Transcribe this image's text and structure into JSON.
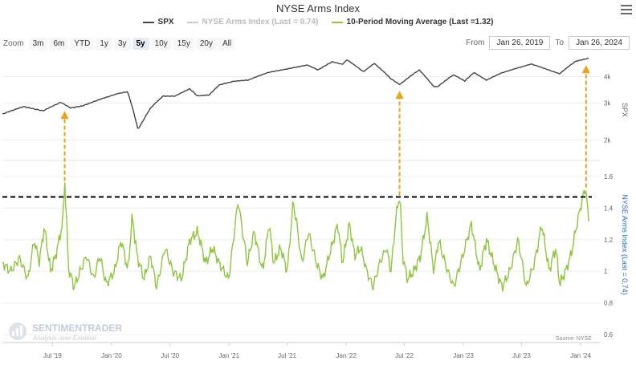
{
  "title": "NYSE Arms Index",
  "legend": [
    {
      "label": "SPX",
      "color": "#444444"
    },
    {
      "label": "NYSE Arms Index (Last = 0.74)",
      "color": "#cccccc"
    },
    {
      "label": "10-Period Moving Average (Last =1.32)",
      "color": "#8dc63f"
    }
  ],
  "zoom": {
    "label": "Zoom",
    "buttons": [
      "3m",
      "6m",
      "YTD",
      "1y",
      "3y",
      "5y",
      "10y",
      "15y",
      "20y",
      "All"
    ],
    "active": "5y"
  },
  "range": {
    "from_label": "From",
    "from": "Jan 26, 2019",
    "to_label": "To",
    "to": "Jan 26, 2024"
  },
  "watermark": {
    "brand": "SENTIMENTRADER",
    "tagline": "Analysis over Emotion"
  },
  "source": "Source: NYSE",
  "colors": {
    "spx": "#444444",
    "arms": "#8dc63f",
    "arrow": "#e8a317",
    "threshold": "#000000",
    "axis_right": "#2a6ebb"
  },
  "chart_data": {
    "type": "line",
    "title": "NYSE Arms Index",
    "x_range": [
      "2019-01-26",
      "2024-01-26"
    ],
    "x_ticks": [
      "Jul '19",
      "Jan '20",
      "Jul '20",
      "Jan '21",
      "Jul '21",
      "Jan '22",
      "Jul '22",
      "Jan '23",
      "Jul '23",
      "Jan '24"
    ],
    "x_tick_dates": [
      "2019-07-01",
      "2020-01-01",
      "2020-07-01",
      "2021-01-01",
      "2021-07-01",
      "2022-01-01",
      "2022-07-01",
      "2023-01-01",
      "2023-07-01",
      "2024-01-01"
    ],
    "grid": true,
    "legend_position": "top-center",
    "panels": [
      {
        "name": "SPX",
        "ylabel": "SPX",
        "scale": "log",
        "yticks": [
          "2k",
          "3k",
          "4k"
        ],
        "ytick_values": [
          2000,
          3000,
          4000
        ],
        "ylim": [
          1600,
          5000
        ],
        "series": [
          {
            "name": "SPX",
            "x": [
              "2019-01-26",
              "2019-04-01",
              "2019-06-01",
              "2019-07-26",
              "2019-08-26",
              "2019-10-01",
              "2019-12-01",
              "2020-01-20",
              "2020-02-19",
              "2020-03-23",
              "2020-05-01",
              "2020-06-08",
              "2020-07-15",
              "2020-08-31",
              "2020-09-23",
              "2020-10-30",
              "2020-12-01",
              "2021-01-15",
              "2021-03-01",
              "2021-05-01",
              "2021-07-01",
              "2021-09-02",
              "2021-10-04",
              "2021-11-18",
              "2021-12-20",
              "2022-01-03",
              "2022-02-23",
              "2022-03-29",
              "2022-05-20",
              "2022-06-16",
              "2022-08-16",
              "2022-09-30",
              "2022-10-12",
              "2022-12-01",
              "2023-01-05",
              "2023-02-02",
              "2023-03-13",
              "2023-05-01",
              "2023-07-31",
              "2023-10-27",
              "2023-12-15",
              "2024-01-26"
            ],
            "values": [
              2660,
              2880,
              2750,
              3020,
              2840,
              2900,
              3140,
              3320,
              3390,
              2240,
              2830,
              3230,
              3230,
              3500,
              3240,
              3270,
              3650,
              3800,
              3850,
              4180,
              4350,
              4540,
              4300,
              4700,
              4570,
              4800,
              4220,
              4620,
              3900,
              3670,
              4300,
              3590,
              3580,
              4080,
              3810,
              4180,
              3850,
              4170,
              4590,
              4120,
              4720,
              4890
            ]
          }
        ]
      },
      {
        "name": "NYSE Arms Index",
        "ylabel": "NYSE Arms Index (Last = 0.74)",
        "yticks": [
          "0.6",
          "0.8",
          "1",
          "1.2",
          "1.4",
          "1.6"
        ],
        "ytick_values": [
          0.6,
          0.8,
          1.0,
          1.2,
          1.4,
          1.6
        ],
        "ylim": [
          0.55,
          1.65
        ],
        "threshold": 1.47,
        "series": [
          {
            "name": "10-Period Moving Average (Last =1.32)",
            "x": [
              "2019-01-26",
              "2019-02-20",
              "2019-03-20",
              "2019-04-15",
              "2019-05-05",
              "2019-05-20",
              "2019-06-05",
              "2019-06-25",
              "2019-07-10",
              "2019-08-01",
              "2019-08-08",
              "2019-08-20",
              "2019-09-05",
              "2019-09-25",
              "2019-10-15",
              "2019-11-05",
              "2019-11-25",
              "2019-12-15",
              "2020-01-10",
              "2020-01-31",
              "2020-02-20",
              "2020-03-05",
              "2020-03-20",
              "2020-04-10",
              "2020-05-01",
              "2020-05-20",
              "2020-06-15",
              "2020-07-10",
              "2020-08-05",
              "2020-09-01",
              "2020-09-25",
              "2020-10-20",
              "2020-11-10",
              "2020-12-01",
              "2020-12-30",
              "2021-01-29",
              "2021-02-26",
              "2021-03-20",
              "2021-04-15",
              "2021-05-05",
              "2021-05-20",
              "2021-06-10",
              "2021-07-01",
              "2021-07-20",
              "2021-08-15",
              "2021-09-05",
              "2021-09-30",
              "2021-10-20",
              "2021-11-15",
              "2021-12-05",
              "2021-12-20",
              "2022-01-10",
              "2022-01-27",
              "2022-02-15",
              "2022-03-05",
              "2022-03-25",
              "2022-04-15",
              "2022-05-05",
              "2022-05-20",
              "2022-06-05",
              "2022-06-16",
              "2022-06-25",
              "2022-07-10",
              "2022-07-30",
              "2022-08-20",
              "2022-09-10",
              "2022-09-30",
              "2022-10-15",
              "2022-11-05",
              "2022-12-01",
              "2022-12-30",
              "2023-01-25",
              "2023-02-20",
              "2023-03-13",
              "2023-04-05",
              "2023-05-01",
              "2023-05-25",
              "2023-06-20",
              "2023-07-15",
              "2023-08-10",
              "2023-09-01",
              "2023-09-25",
              "2023-10-15",
              "2023-10-27",
              "2023-11-15",
              "2023-12-01",
              "2023-12-15",
              "2024-01-05",
              "2024-01-12",
              "2024-01-18",
              "2024-01-22",
              "2024-01-26"
            ],
            "values": [
              1.05,
              1.0,
              1.08,
              0.95,
              1.2,
              1.06,
              1.28,
              1.0,
              1.1,
              1.3,
              1.57,
              1.02,
              0.9,
              1.0,
              1.1,
              0.95,
              1.1,
              0.92,
              1.0,
              1.2,
              1.0,
              1.35,
              1.1,
              0.95,
              1.1,
              0.9,
              1.15,
              1.0,
              0.95,
              1.2,
              1.25,
              1.05,
              1.15,
              1.05,
              0.95,
              1.45,
              1.05,
              1.25,
              1.0,
              1.3,
              1.05,
              1.15,
              1.0,
              1.45,
              1.05,
              1.25,
              1.05,
              0.95,
              1.15,
              1.3,
              1.05,
              1.3,
              1.1,
              1.15,
              1.0,
              0.9,
              1.05,
              1.15,
              1.0,
              1.35,
              1.48,
              1.1,
              0.95,
              1.0,
              1.1,
              1.35,
              1.0,
              1.2,
              1.05,
              0.9,
              1.1,
              1.3,
              1.0,
              1.2,
              1.05,
              0.9,
              1.0,
              1.2,
              0.9,
              1.05,
              1.3,
              1.0,
              1.15,
              0.92,
              1.0,
              1.1,
              1.25,
              1.45,
              1.5,
              1.53,
              1.4,
              1.32
            ]
          }
        ]
      }
    ],
    "annotations": [
      {
        "type": "arrow",
        "date": "2019-08-08",
        "label": ""
      },
      {
        "type": "arrow",
        "date": "2022-06-16",
        "label": ""
      },
      {
        "type": "arrow",
        "date": "2024-01-18",
        "label": ""
      },
      {
        "type": "hline",
        "panel": "NYSE Arms Index",
        "value": 1.47
      }
    ]
  }
}
